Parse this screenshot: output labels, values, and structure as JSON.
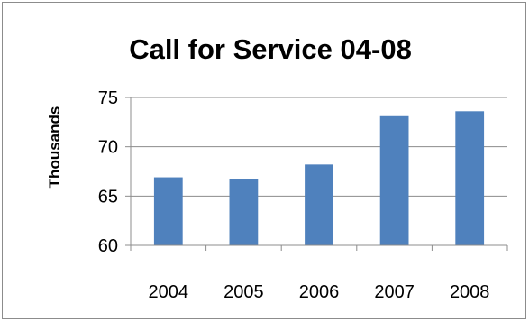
{
  "chart_data": {
    "type": "bar",
    "title": "Call for Service 04-08",
    "xlabel": "",
    "ylabel": "Thousands",
    "categories": [
      "2004",
      "2005",
      "2006",
      "2007",
      "2008"
    ],
    "values": [
      66.9,
      66.7,
      68.2,
      73.1,
      73.6
    ],
    "ylim": [
      60,
      75
    ],
    "yticks": [
      "60",
      "65",
      "70",
      "75"
    ],
    "grid": true,
    "legend": "none",
    "bar_color": "#4f81bd",
    "grid_color": "#8c8c8c"
  }
}
